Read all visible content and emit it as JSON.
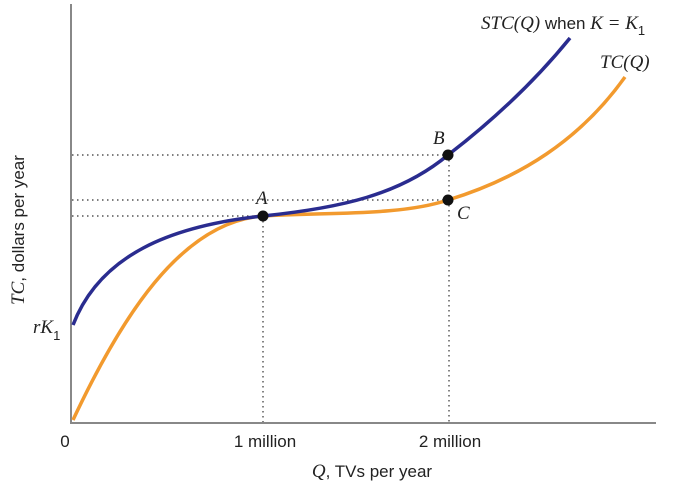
{
  "axes": {
    "y_label": {
      "symbol": "TC",
      "text": ", dollars per year"
    },
    "x_label": {
      "symbol": "Q",
      "text": ", TVs per year"
    },
    "x_ticks": [
      "0",
      "1 million",
      "2 million"
    ],
    "intercept": {
      "symbol": "rK",
      "sub": "1"
    }
  },
  "curves": [
    {
      "name": "STC(Q)",
      "when": " when ",
      "condition": "K = K",
      "sub": "1"
    },
    {
      "name": "TC(Q)"
    }
  ],
  "points": [
    "A",
    "B",
    "C"
  ]
}
